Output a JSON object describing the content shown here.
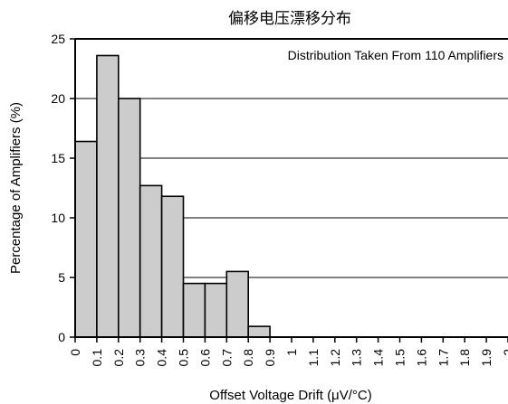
{
  "chart_data": {
    "type": "bar",
    "title": "偏移电压漂移分布",
    "xlabel": "Offset Voltage Drift (μV/°C)",
    "ylabel": "Percentage of Amplifiers (%)",
    "annotation": "Distribution Taken From 110 Amplifiers",
    "x_ticks": [
      "0",
      "0.1",
      "0.2",
      "0.3",
      "0.4",
      "0.5",
      "0.6",
      "0.7",
      "0.8",
      "0.9",
      "1",
      "1.1",
      "1.2",
      "1.3",
      "1.4",
      "1.5",
      "1.6",
      "1.7",
      "1.8",
      "1.9",
      "2"
    ],
    "y_ticks": [
      "0",
      "5",
      "10",
      "15",
      "20",
      "25"
    ],
    "ylim": [
      0,
      25
    ],
    "xlim": [
      0,
      2
    ],
    "bin_width": 0.1,
    "bins": [
      {
        "start": 0.0,
        "value": 16.4
      },
      {
        "start": 0.1,
        "value": 23.6
      },
      {
        "start": 0.2,
        "value": 20.0
      },
      {
        "start": 0.3,
        "value": 12.7
      },
      {
        "start": 0.4,
        "value": 11.8
      },
      {
        "start": 0.5,
        "value": 4.5
      },
      {
        "start": 0.6,
        "value": 4.5
      },
      {
        "start": 0.7,
        "value": 5.5
      },
      {
        "start": 0.8,
        "value": 0.9
      }
    ],
    "grid": "horizontal",
    "legend": "none",
    "bar_color": "#cccccc"
  }
}
